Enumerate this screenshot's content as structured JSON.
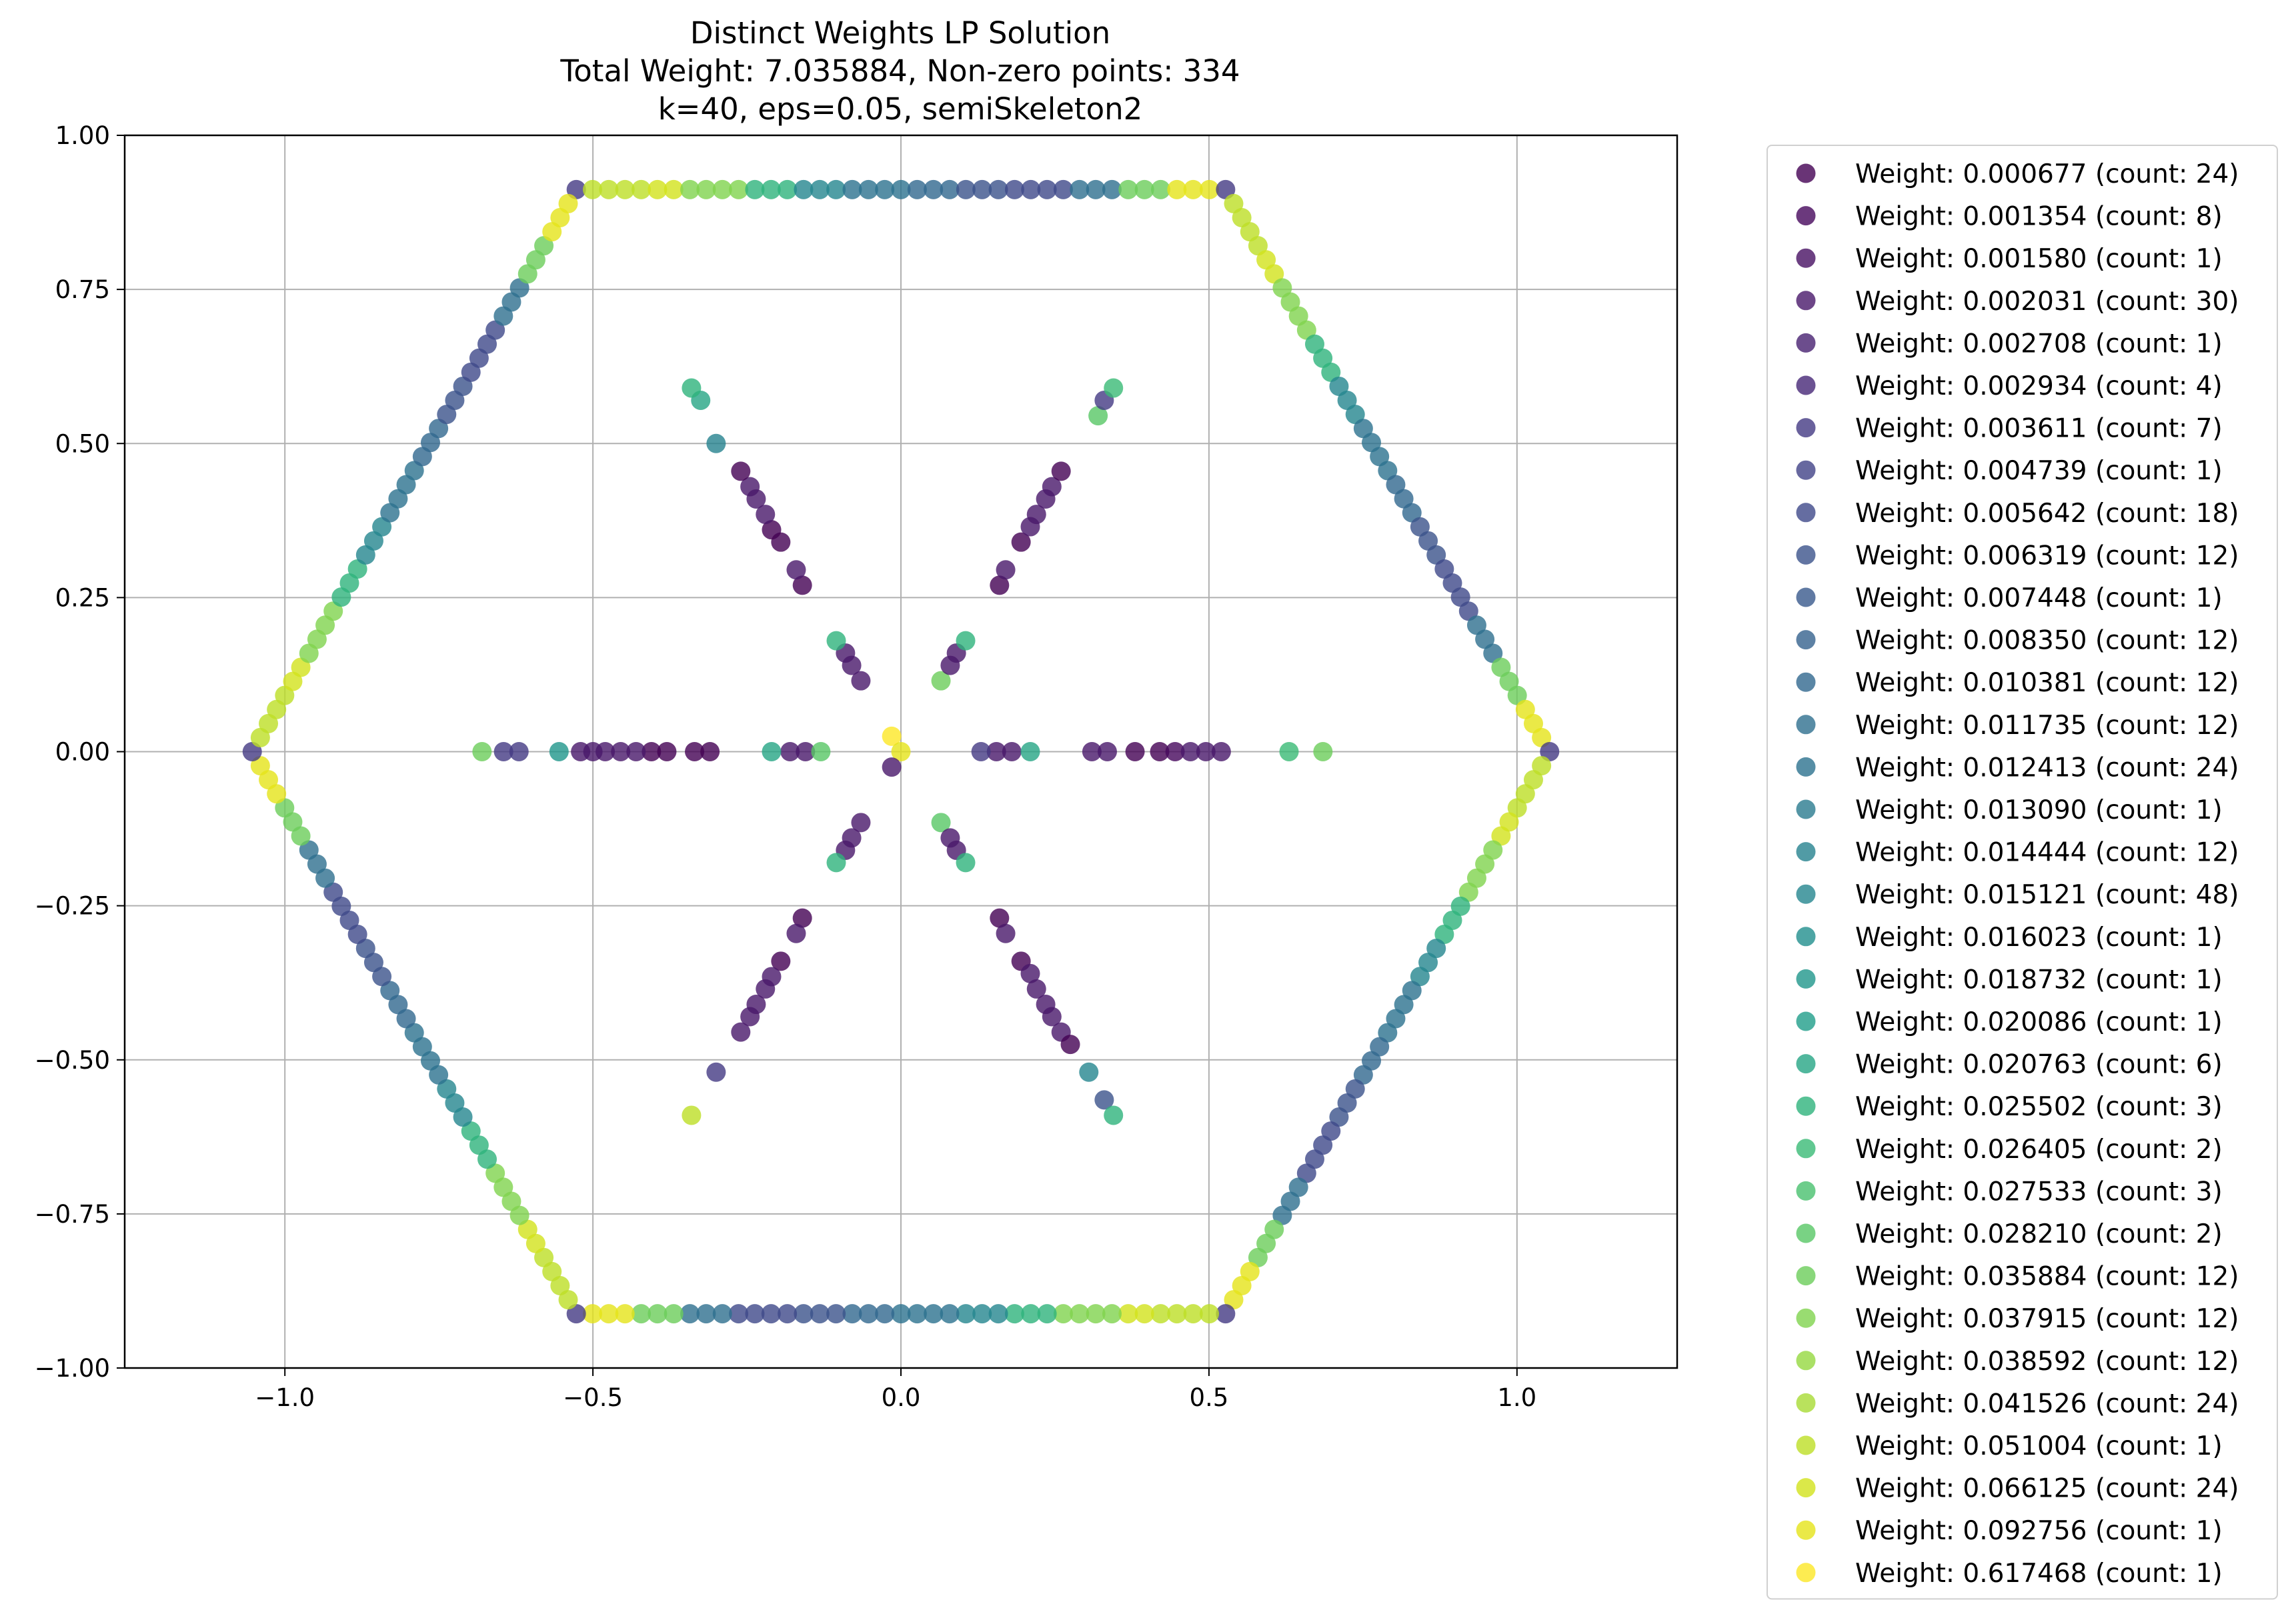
{
  "chart_data": {
    "type": "scatter",
    "title": "Distinct Weights LP Solution",
    "subtitle": "Total Weight: 7.035884, Non-zero points: 334",
    "subtitle2": "k=40, eps=0.05, semiSkeleton2",
    "xlabel": "",
    "ylabel": "",
    "xlim": [
      -1.26,
      1.26
    ],
    "ylim": [
      -1.0,
      1.0
    ],
    "xticks": [
      -1.0,
      -0.5,
      0.0,
      0.5,
      1.0
    ],
    "xtick_labels": [
      "−1.0",
      "−0.5",
      "0.0",
      "0.5",
      "1.0"
    ],
    "yticks": [
      1.0,
      0.75,
      0.5,
      0.25,
      0.0,
      -0.25,
      -0.5,
      -0.75,
      -1.0
    ],
    "ytick_labels": [
      "1.00",
      "0.75",
      "0.50",
      "0.25",
      "0.00",
      "−0.25",
      "−0.50",
      "−0.75",
      "−1.00"
    ],
    "grid": true,
    "legend_position": "outside-right",
    "colormap": "viridis",
    "legend": [
      {
        "label": "Weight: 0.000677 (count: 24)",
        "color": "#440154"
      },
      {
        "label": "Weight: 0.001354 (count: 8)",
        "color": "#46085c"
      },
      {
        "label": "Weight: 0.001580 (count: 1)",
        "color": "#471063"
      },
      {
        "label": "Weight: 0.002031 (count: 30)",
        "color": "#48186a"
      },
      {
        "label": "Weight: 0.002708 (count: 1)",
        "color": "#472070"
      },
      {
        "label": "Weight: 0.002934 (count: 4)",
        "color": "#462777"
      },
      {
        "label": "Weight: 0.003611 (count: 7)",
        "color": "#443a83"
      },
      {
        "label": "Weight: 0.004739 (count: 1)",
        "color": "#414287"
      },
      {
        "label": "Weight: 0.005642 (count: 18)",
        "color": "#3e4989"
      },
      {
        "label": "Weight: 0.006319 (count: 12)",
        "color": "#3b528b"
      },
      {
        "label": "Weight: 0.007448 (count: 1)",
        "color": "#38598c"
      },
      {
        "label": "Weight: 0.008350 (count: 12)",
        "color": "#34618d"
      },
      {
        "label": "Weight: 0.010381 (count: 12)",
        "color": "#31688e"
      },
      {
        "label": "Weight: 0.011735 (count: 12)",
        "color": "#2e6f8e"
      },
      {
        "label": "Weight: 0.012413 (count: 24)",
        "color": "#2c728e"
      },
      {
        "label": "Weight: 0.013090 (count: 1)",
        "color": "#297b8e"
      },
      {
        "label": "Weight: 0.014444 (count: 12)",
        "color": "#26828e"
      },
      {
        "label": "Weight: 0.015121 (count: 48)",
        "color": "#24868e"
      },
      {
        "label": "Weight: 0.016023 (count: 1)",
        "color": "#218f8d"
      },
      {
        "label": "Weight: 0.018732 (count: 1)",
        "color": "#1f968b"
      },
      {
        "label": "Weight: 0.020086 (count: 1)",
        "color": "#1f9e89"
      },
      {
        "label": "Weight: 0.020763 (count: 6)",
        "color": "#25a584"
      },
      {
        "label": "Weight: 0.025502 (count: 3)",
        "color": "#2eb37c"
      },
      {
        "label": "Weight: 0.026405 (count: 2)",
        "color": "#3aba76"
      },
      {
        "label": "Weight: 0.027533 (count: 3)",
        "color": "#48c16e"
      },
      {
        "label": "Weight: 0.028210 (count: 2)",
        "color": "#58c765"
      },
      {
        "label": "Weight: 0.035884 (count: 12)",
        "color": "#6ccd5a"
      },
      {
        "label": "Weight: 0.037915 (count: 12)",
        "color": "#7fd34e"
      },
      {
        "label": "Weight: 0.038592 (count: 12)",
        "color": "#95d840"
      },
      {
        "label": "Weight: 0.041526 (count: 24)",
        "color": "#a8db34"
      },
      {
        "label": "Weight: 0.051004 (count: 1)",
        "color": "#bddf26"
      },
      {
        "label": "Weight: 0.066125 (count: 24)",
        "color": "#d2e21b"
      },
      {
        "label": "Weight: 0.092756 (count: 1)",
        "color": "#e5e419"
      },
      {
        "label": "Weight: 0.617468 (count: 1)",
        "color": "#fde725"
      }
    ],
    "hexagon": {
      "vertices": [
        [
          -0.527,
          0.912
        ],
        [
          0.527,
          0.912
        ],
        [
          1.053,
          0.0
        ],
        [
          0.527,
          -0.912
        ],
        [
          -0.527,
          -0.912
        ],
        [
          -1.053,
          0.0
        ]
      ],
      "points_per_edge": 40,
      "color_by_position": [
        {
          "upto": 0.02,
          "color": "#443a83"
        },
        {
          "upto": 0.1,
          "color": "#bddf26"
        },
        {
          "upto": 0.17,
          "color": "#d2e21b"
        },
        {
          "upto": 0.25,
          "color": "#7fd34e"
        },
        {
          "upto": 0.33,
          "color": "#2eb37c"
        },
        {
          "upto": 0.42,
          "color": "#24868e"
        },
        {
          "upto": 0.5,
          "color": "#2c728e"
        },
        {
          "upto": 0.58,
          "color": "#31688e"
        },
        {
          "upto": 0.67,
          "color": "#3b528b"
        },
        {
          "upto": 0.75,
          "color": "#3e4989"
        },
        {
          "upto": 0.83,
          "color": "#2e6f8e"
        },
        {
          "upto": 0.9,
          "color": "#6ccd5a"
        },
        {
          "upto": 0.98,
          "color": "#e5e419"
        },
        {
          "upto": 1.0,
          "color": "#d2e21b"
        }
      ]
    },
    "interior_points": [
      {
        "x": 0.38,
        "y": 0.0,
        "color": "#440154"
      },
      {
        "x": 0.42,
        "y": 0.0,
        "color": "#440154"
      },
      {
        "x": 0.445,
        "y": 0.0,
        "color": "#46085c"
      },
      {
        "x": 0.47,
        "y": 0.0,
        "color": "#48186a"
      },
      {
        "x": 0.495,
        "y": 0.0,
        "color": "#48186a"
      },
      {
        "x": 0.52,
        "y": 0.0,
        "color": "#48186a"
      },
      {
        "x": 0.31,
        "y": 0.0,
        "color": "#48186a"
      },
      {
        "x": 0.335,
        "y": 0.0,
        "color": "#48186a"
      },
      {
        "x": 0.155,
        "y": 0.0,
        "color": "#48186a"
      },
      {
        "x": 0.18,
        "y": 0.0,
        "color": "#48186a"
      },
      {
        "x": 0.21,
        "y": 0.0,
        "color": "#25a584"
      },
      {
        "x": 0.13,
        "y": 0.0,
        "color": "#443a83"
      },
      {
        "x": 0.63,
        "y": 0.0,
        "color": "#3aba76"
      },
      {
        "x": 0.685,
        "y": 0.0,
        "color": "#6ccd5a"
      },
      {
        "x": -0.38,
        "y": 0.0,
        "color": "#440154"
      },
      {
        "x": -0.405,
        "y": 0.0,
        "color": "#440154"
      },
      {
        "x": -0.43,
        "y": 0.0,
        "color": "#48186a"
      },
      {
        "x": -0.455,
        "y": 0.0,
        "color": "#48186a"
      },
      {
        "x": -0.48,
        "y": 0.0,
        "color": "#48186a"
      },
      {
        "x": -0.5,
        "y": 0.0,
        "color": "#48186a"
      },
      {
        "x": -0.52,
        "y": 0.0,
        "color": "#48186a"
      },
      {
        "x": -0.31,
        "y": 0.0,
        "color": "#440154"
      },
      {
        "x": -0.335,
        "y": 0.0,
        "color": "#440154"
      },
      {
        "x": -0.18,
        "y": 0.0,
        "color": "#48186a"
      },
      {
        "x": -0.155,
        "y": 0.0,
        "color": "#48186a"
      },
      {
        "x": -0.21,
        "y": 0.0,
        "color": "#25a584"
      },
      {
        "x": -0.13,
        "y": 0.0,
        "color": "#58c765"
      },
      {
        "x": -0.555,
        "y": 0.0,
        "color": "#1f968b"
      },
      {
        "x": -0.62,
        "y": 0.0,
        "color": "#443a83"
      },
      {
        "x": -0.645,
        "y": 0.0,
        "color": "#443a83"
      },
      {
        "x": -0.68,
        "y": 0.0,
        "color": "#6ccd5a"
      },
      {
        "x": 0.16,
        "y": 0.27,
        "color": "#440154"
      },
      {
        "x": 0.17,
        "y": 0.295,
        "color": "#48186a"
      },
      {
        "x": 0.195,
        "y": 0.34,
        "color": "#440154"
      },
      {
        "x": 0.21,
        "y": 0.365,
        "color": "#48186a"
      },
      {
        "x": 0.22,
        "y": 0.385,
        "color": "#48186a"
      },
      {
        "x": 0.235,
        "y": 0.41,
        "color": "#48186a"
      },
      {
        "x": 0.245,
        "y": 0.43,
        "color": "#48186a"
      },
      {
        "x": 0.26,
        "y": 0.455,
        "color": "#440154"
      },
      {
        "x": 0.32,
        "y": 0.545,
        "color": "#58c765"
      },
      {
        "x": 0.33,
        "y": 0.57,
        "color": "#443a83"
      },
      {
        "x": 0.345,
        "y": 0.59,
        "color": "#3aba76"
      },
      {
        "x": 0.065,
        "y": 0.115,
        "color": "#6ccd5a"
      },
      {
        "x": 0.08,
        "y": 0.14,
        "color": "#48186a"
      },
      {
        "x": 0.09,
        "y": 0.16,
        "color": "#48186a"
      },
      {
        "x": 0.105,
        "y": 0.18,
        "color": "#2eb37c"
      },
      {
        "x": -0.16,
        "y": 0.27,
        "color": "#440154"
      },
      {
        "x": -0.17,
        "y": 0.295,
        "color": "#48186a"
      },
      {
        "x": -0.195,
        "y": 0.34,
        "color": "#440154"
      },
      {
        "x": -0.21,
        "y": 0.36,
        "color": "#440154"
      },
      {
        "x": -0.22,
        "y": 0.385,
        "color": "#48186a"
      },
      {
        "x": -0.235,
        "y": 0.41,
        "color": "#48186a"
      },
      {
        "x": -0.245,
        "y": 0.43,
        "color": "#48186a"
      },
      {
        "x": -0.26,
        "y": 0.455,
        "color": "#440154"
      },
      {
        "x": -0.3,
        "y": 0.5,
        "color": "#26828e"
      },
      {
        "x": -0.325,
        "y": 0.57,
        "color": "#25a584"
      },
      {
        "x": -0.34,
        "y": 0.59,
        "color": "#2eb37c"
      },
      {
        "x": -0.065,
        "y": 0.115,
        "color": "#48186a"
      },
      {
        "x": -0.08,
        "y": 0.14,
        "color": "#48186a"
      },
      {
        "x": -0.09,
        "y": 0.16,
        "color": "#48186a"
      },
      {
        "x": -0.105,
        "y": 0.18,
        "color": "#2eb37c"
      },
      {
        "x": 0.16,
        "y": -0.27,
        "color": "#440154"
      },
      {
        "x": 0.17,
        "y": -0.295,
        "color": "#48186a"
      },
      {
        "x": 0.195,
        "y": -0.34,
        "color": "#440154"
      },
      {
        "x": 0.21,
        "y": -0.36,
        "color": "#48186a"
      },
      {
        "x": 0.22,
        "y": -0.385,
        "color": "#48186a"
      },
      {
        "x": 0.235,
        "y": -0.41,
        "color": "#48186a"
      },
      {
        "x": 0.245,
        "y": -0.43,
        "color": "#48186a"
      },
      {
        "x": 0.26,
        "y": -0.455,
        "color": "#48186a"
      },
      {
        "x": 0.275,
        "y": -0.475,
        "color": "#440154"
      },
      {
        "x": 0.305,
        "y": -0.52,
        "color": "#24868e"
      },
      {
        "x": 0.33,
        "y": -0.565,
        "color": "#3b528b"
      },
      {
        "x": 0.345,
        "y": -0.59,
        "color": "#2eb37c"
      },
      {
        "x": 0.065,
        "y": -0.115,
        "color": "#58c765"
      },
      {
        "x": 0.08,
        "y": -0.14,
        "color": "#48186a"
      },
      {
        "x": 0.09,
        "y": -0.16,
        "color": "#48186a"
      },
      {
        "x": 0.105,
        "y": -0.18,
        "color": "#2eb37c"
      },
      {
        "x": -0.16,
        "y": -0.27,
        "color": "#440154"
      },
      {
        "x": -0.17,
        "y": -0.295,
        "color": "#48186a"
      },
      {
        "x": -0.195,
        "y": -0.34,
        "color": "#440154"
      },
      {
        "x": -0.21,
        "y": -0.365,
        "color": "#48186a"
      },
      {
        "x": -0.22,
        "y": -0.385,
        "color": "#48186a"
      },
      {
        "x": -0.235,
        "y": -0.41,
        "color": "#48186a"
      },
      {
        "x": -0.245,
        "y": -0.43,
        "color": "#48186a"
      },
      {
        "x": -0.26,
        "y": -0.455,
        "color": "#48186a"
      },
      {
        "x": -0.3,
        "y": -0.52,
        "color": "#443a83"
      },
      {
        "x": -0.34,
        "y": -0.59,
        "color": "#bddf26"
      },
      {
        "x": -0.065,
        "y": -0.115,
        "color": "#48186a"
      },
      {
        "x": -0.08,
        "y": -0.14,
        "color": "#48186a"
      },
      {
        "x": -0.09,
        "y": -0.16,
        "color": "#48186a"
      },
      {
        "x": -0.105,
        "y": -0.18,
        "color": "#2eb37c"
      },
      {
        "x": -0.015,
        "y": 0.025,
        "color": "#fde725"
      },
      {
        "x": 0.0,
        "y": 0.0,
        "color": "#e5e419"
      },
      {
        "x": -0.015,
        "y": -0.025,
        "color": "#48186a"
      }
    ]
  }
}
